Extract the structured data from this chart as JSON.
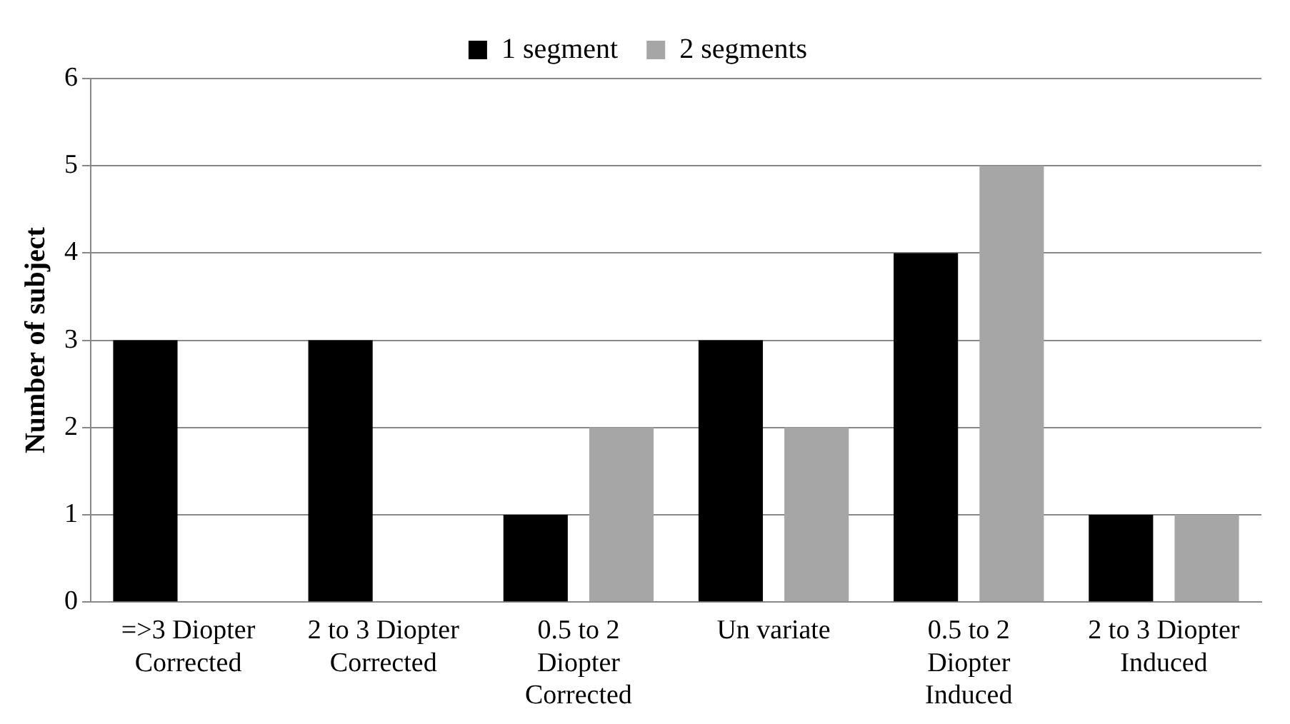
{
  "chart_data": {
    "type": "bar",
    "ylabel": "Number of subject",
    "categories": [
      "=>3 Diopter Corrected",
      "2 to 3 Diopter Corrected",
      "0.5 to 2 Diopter Corrected",
      "Un variate",
      "0.5 to 2 Diopter Induced",
      "2 to 3 Diopter Induced"
    ],
    "series": [
      {
        "name": "1 segment",
        "color": "#000000",
        "values": [
          3,
          3,
          1,
          3,
          4,
          1
        ]
      },
      {
        "name": "2 segments",
        "color": "#a6a6a6",
        "values": [
          0,
          0,
          2,
          2,
          5,
          1
        ]
      }
    ],
    "ylim": [
      0,
      6
    ],
    "yticks": [
      0,
      1,
      2,
      3,
      4,
      5,
      6
    ],
    "grid": "y",
    "legend": "top"
  }
}
